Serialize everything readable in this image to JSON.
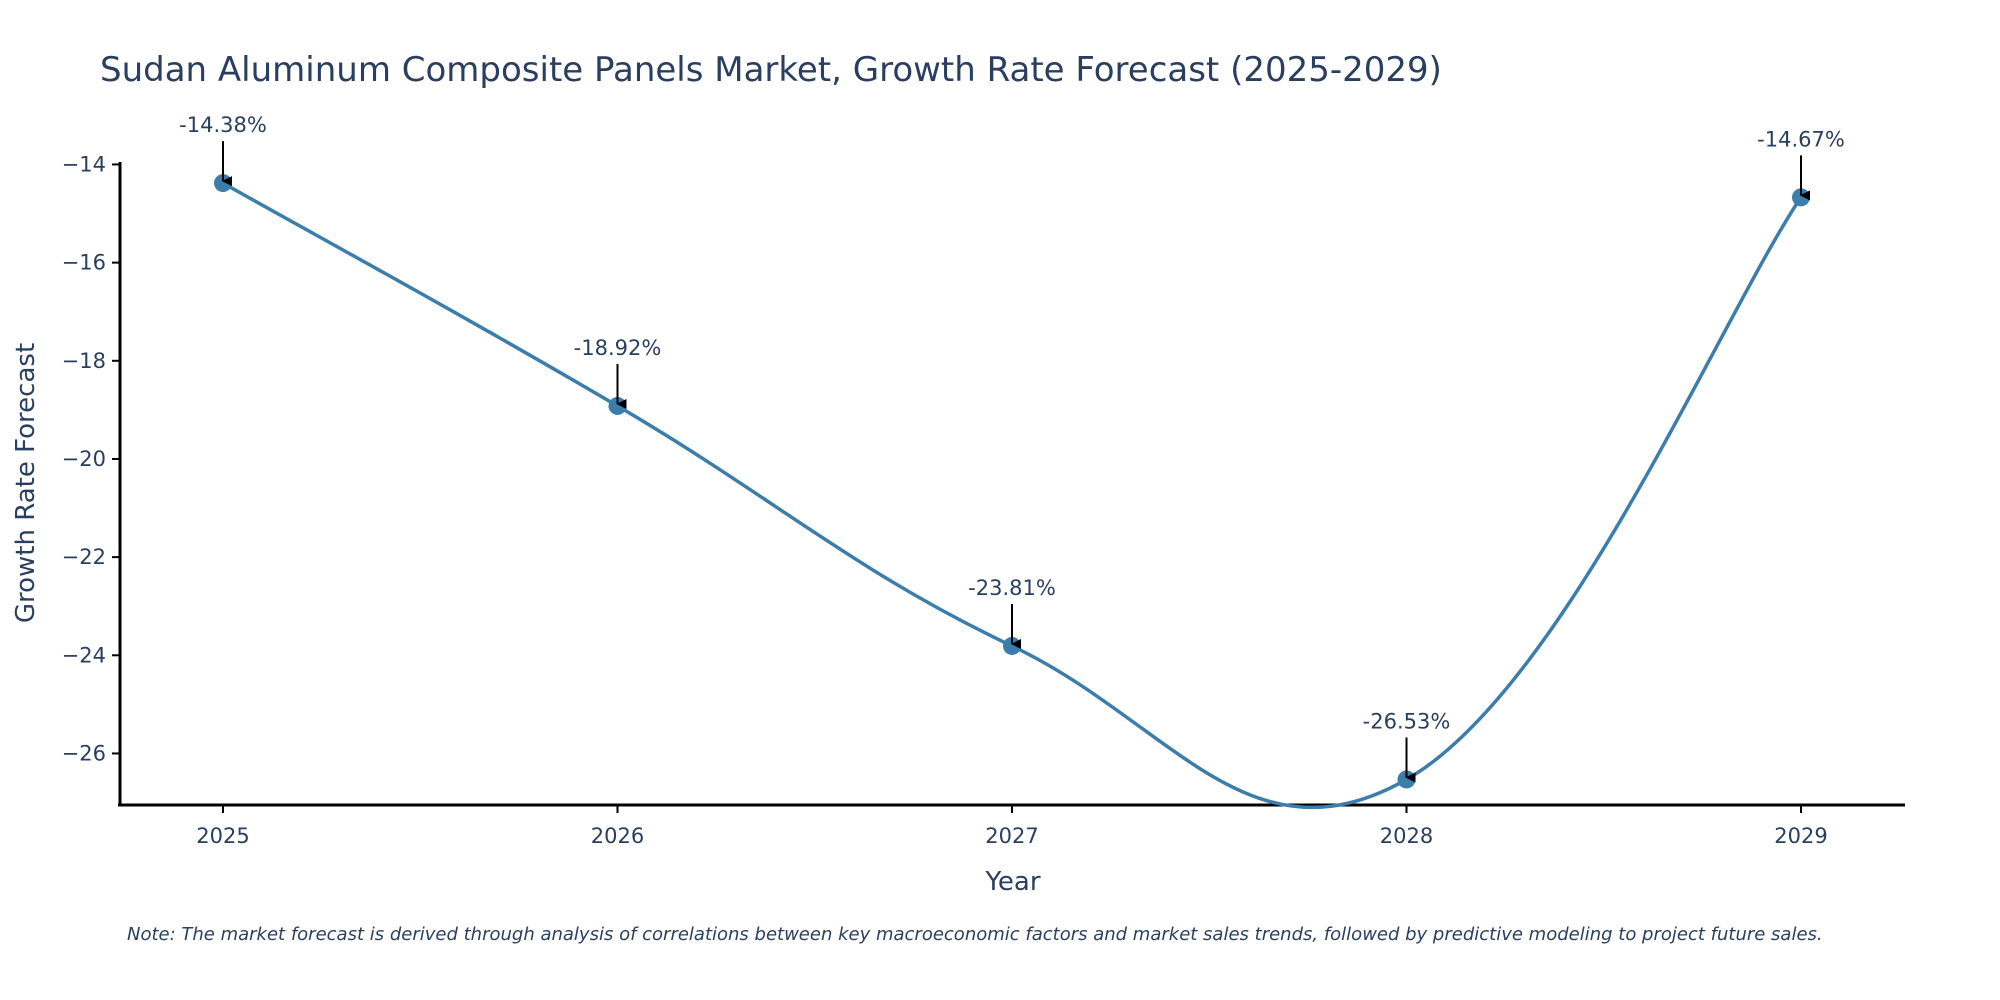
{
  "chart_data": {
    "type": "line",
    "title": "Sudan Aluminum Composite Panels Market, Growth Rate Forecast (2025-2029)",
    "xlabel": "Year",
    "ylabel": "Growth Rate Forecast",
    "x": [
      "2025",
      "2026",
      "2027",
      "2028",
      "2029"
    ],
    "series": [
      {
        "name": "Growth Rate Forecast",
        "values": [
          -14.38,
          -18.92,
          -23.81,
          -26.53,
          -14.67
        ]
      }
    ],
    "data_labels": [
      "-14.38%",
      "-18.92%",
      "-23.81%",
      "-26.53%",
      "-14.67%"
    ],
    "ylim": [
      -27.05,
      -13.95
    ],
    "yticks": [
      -14,
      -16,
      -18,
      -20,
      -22,
      -24,
      -26
    ],
    "ytick_labels": [
      "−14",
      "−16",
      "−18",
      "−20",
      "−22",
      "−24",
      "−26"
    ],
    "grid": false,
    "line_color": "#3b7dab",
    "marker_color": "#3b7dab",
    "annotation_arrow_color": "#000000",
    "note": "Note: The market forecast is derived through analysis of correlations between key macroeconomic factors and market sales trends, followed by predictive modeling to project future sales."
  }
}
